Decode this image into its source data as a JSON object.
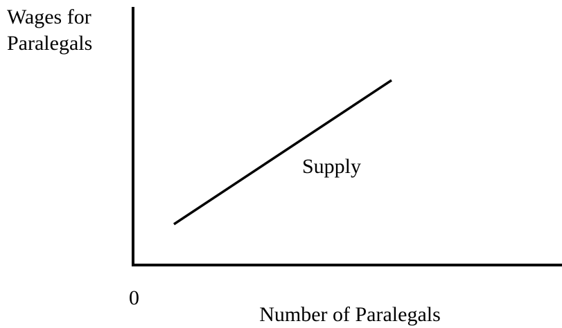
{
  "y_axis_label": [
    "Wages for",
    "Paralegals"
  ],
  "x_axis_label": "Number of Paralegals",
  "origin_label": "0",
  "curve_label": "Supply"
}
